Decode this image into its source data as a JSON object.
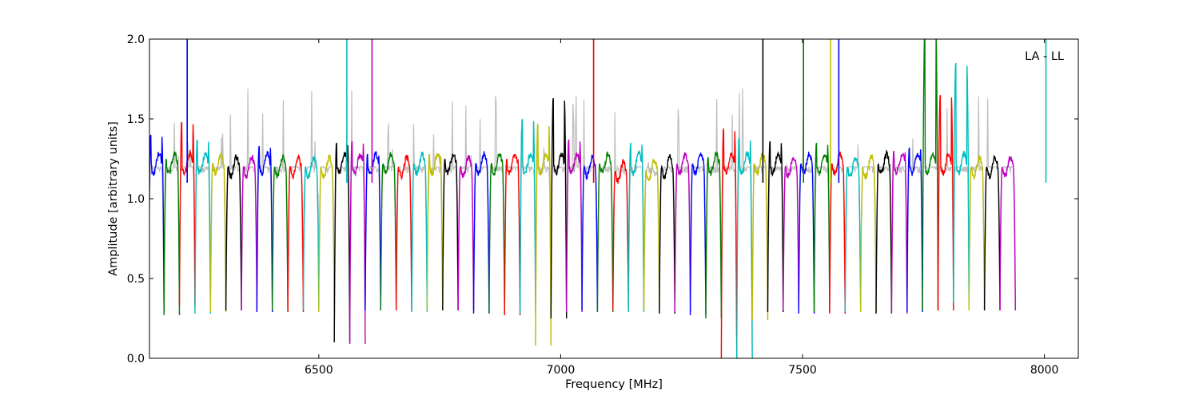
{
  "chart_data": {
    "type": "line",
    "xlabel": "Frequency [MHz]",
    "ylabel": "Amplitude [arbitrary units]",
    "xlim": [
      6150,
      8070
    ],
    "ylim": [
      0.0,
      2.0
    ],
    "xticks": [
      6500,
      7000,
      7500,
      8000
    ],
    "yticks": [
      0.0,
      0.5,
      1.0,
      1.5,
      2.0
    ],
    "xtick_labels": [
      "6500",
      "7000",
      "7500",
      "8000"
    ],
    "ytick_labels": [
      "0.0",
      "0.5",
      "1.0",
      "1.5",
      "2.0"
    ],
    "annotation": "LA - LL",
    "grid": false,
    "colors": {
      "cycle": [
        "#0000ff",
        "#008000",
        "#ff0000",
        "#00bfbf",
        "#bfbf00",
        "#000000",
        "#bf00bf"
      ],
      "background_trace": "#bfbfbf"
    },
    "channel_start_freq": 6148,
    "channel_width": 32,
    "channel_count": 56,
    "channel_peak_amplitude": [
      1.4,
      1.25,
      1.48,
      1.37,
      1.22,
      1.2,
      1.2,
      1.33,
      1.2,
      1.2,
      1.2,
      1.2,
      1.35,
      1.36,
      1.28,
      1.22,
      1.2,
      1.22,
      1.28,
      1.25,
      1.2,
      1.22,
      1.22,
      1.25,
      1.5,
      1.47,
      1.63,
      1.37,
      1.2,
      1.22,
      1.17,
      1.35,
      1.18,
      1.2,
      1.22,
      1.22,
      1.26,
      1.44,
      1.38,
      1.22,
      1.36,
      1.2,
      1.22,
      1.35,
      1.22,
      1.2,
      1.2,
      1.22,
      1.3,
      1.32,
      2.05,
      1.65,
      1.85,
      1.2,
      1.2,
      1.2
    ],
    "channel_trough_amplitude": [
      0.28,
      0.27,
      0.33,
      0.28,
      0.29,
      0.3,
      0.3,
      0.29,
      0.3,
      0.29,
      0.3,
      0.29,
      0.1,
      0.09,
      0.3,
      0.3,
      0.3,
      0.29,
      0.3,
      0.3,
      0.3,
      0.28,
      0.28,
      0.27,
      0.28,
      0.08,
      0.25,
      0.29,
      0.3,
      0.29,
      0.3,
      0.29,
      0.3,
      0.28,
      0.29,
      0.27,
      0.25,
      0.0,
      0.0,
      0.24,
      0.29,
      0.3,
      0.28,
      0.29,
      0.28,
      0.29,
      0.29,
      0.28,
      0.28,
      0.29,
      0.3,
      0.3,
      0.35,
      0.3,
      0.3,
      0.3
    ],
    "narrow_spikes": [
      {
        "x": 6228,
        "y": 2.0
      },
      {
        "x": 6558,
        "y": 2.0
      },
      {
        "x": 6610,
        "y": 2.0
      },
      {
        "x": 7068,
        "y": 2.0
      },
      {
        "x": 7418,
        "y": 2.0
      },
      {
        "x": 7502,
        "y": 2.0
      },
      {
        "x": 7558,
        "y": 2.0
      },
      {
        "x": 7575,
        "y": 2.0
      },
      {
        "x": 8003,
        "y": 2.0
      }
    ]
  }
}
